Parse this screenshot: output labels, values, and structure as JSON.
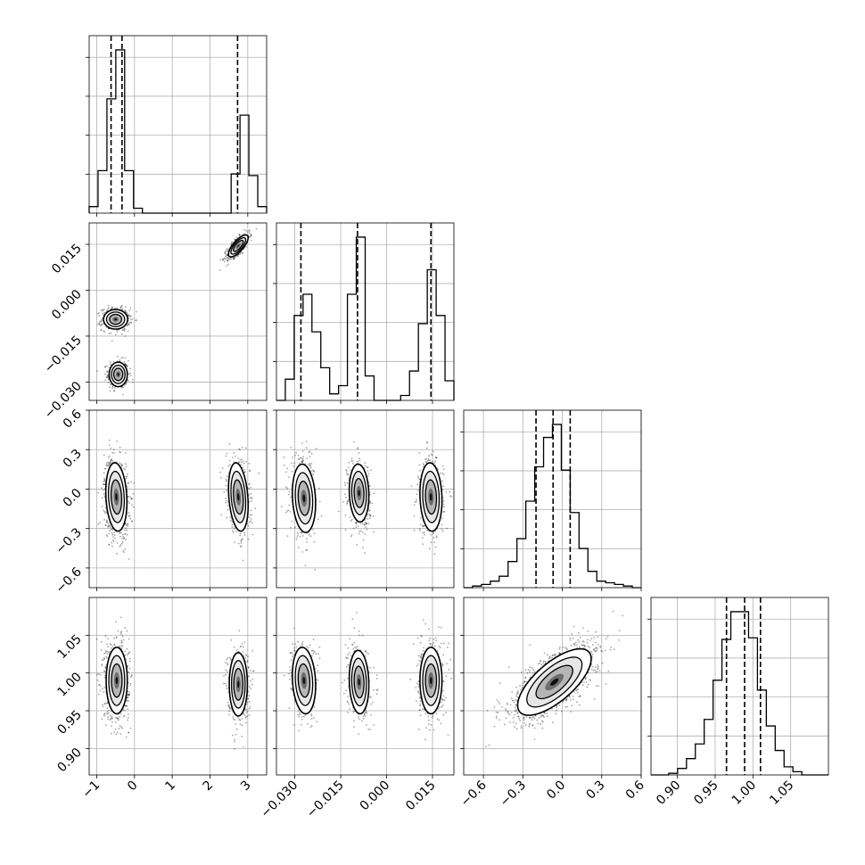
{
  "chart_data": {
    "type": "corner",
    "grid": true,
    "params": [
      {
        "range": [
          -1.2,
          3.5
        ],
        "ticks": [
          -1,
          0,
          1,
          2,
          3
        ],
        "tick_labels": [
          "−1",
          "0",
          "1",
          "2",
          "3"
        ],
        "modes": [
          {
            "center": -0.5,
            "sigma": 0.13,
            "weight": 0.63
          },
          {
            "center": 2.75,
            "sigma": 0.13,
            "weight": 0.37
          }
        ],
        "quantiles": [
          -0.62,
          -0.33,
          2.73
        ],
        "histogram": {
          "bin_edges": [
            -1.2,
            -0.965,
            -0.73,
            -0.495,
            -0.26,
            -0.025,
            0.21,
            0.445,
            0.68,
            0.915,
            1.15,
            1.385,
            1.62,
            1.855,
            2.09,
            2.325,
            2.56,
            2.795,
            3.03,
            3.265,
            3.5
          ],
          "counts": [
            0.04,
            0.26,
            0.7,
            1.0,
            0.26,
            0.03,
            0,
            0,
            0,
            0,
            0,
            0,
            0,
            0,
            0,
            0,
            0.24,
            0.6,
            0.23,
            0.04
          ]
        }
      },
      {
        "range": [
          -0.036,
          0.022
        ],
        "ticks": [
          -0.03,
          -0.015,
          0.0,
          0.015
        ],
        "tick_labels": [
          "−0.030",
          "−0.015",
          "0.000",
          "0.015"
        ],
        "modes": [
          {
            "center": -0.027,
            "sigma": 0.0018,
            "weight": 0.31
          },
          {
            "center": -0.009,
            "sigma": 0.0016,
            "weight": 0.32
          },
          {
            "center": 0.0145,
            "sigma": 0.0018,
            "weight": 0.37
          }
        ],
        "quantiles": [
          -0.028,
          -0.0095,
          0.0145
        ],
        "histogram": {
          "bin_edges": [
            -0.036,
            -0.0331,
            -0.0302,
            -0.0273,
            -0.0244,
            -0.0215,
            -0.0186,
            -0.0157,
            -0.0128,
            -0.0099,
            -0.007,
            -0.0041,
            -0.0012,
            0.0017,
            0.0046,
            0.0075,
            0.0104,
            0.0133,
            0.0162,
            0.0191,
            0.022
          ],
          "counts": [
            0,
            0.13,
            0.52,
            0.65,
            0.42,
            0.2,
            0.04,
            0.09,
            0.65,
            1.0,
            0.15,
            0,
            0,
            0,
            0.03,
            0.18,
            0.47,
            0.8,
            0.52,
            0.12
          ]
        }
      },
      {
        "range": [
          -0.75,
          0.6
        ],
        "ticks": [
          -0.6,
          -0.3,
          0.0,
          0.3,
          0.6
        ],
        "tick_labels": [
          "−0.6",
          "−0.3",
          "0.0",
          "0.3",
          "0.6"
        ],
        "modes": [
          {
            "center": -0.06,
            "sigma": 0.13,
            "weight": 1.0
          }
        ],
        "quantiles": [
          -0.2,
          -0.07,
          0.06
        ],
        "histogram": {
          "bin_edges": [
            -0.75,
            -0.6825,
            -0.615,
            -0.5475,
            -0.48,
            -0.4125,
            -0.345,
            -0.2775,
            -0.21,
            -0.1425,
            -0.075,
            -0.0075,
            0.06,
            0.1275,
            0.195,
            0.2625,
            0.33,
            0.3975,
            0.465,
            0.5325,
            0.6
          ],
          "counts": [
            0,
            0.01,
            0.02,
            0.04,
            0.07,
            0.16,
            0.3,
            0.53,
            0.74,
            0.92,
            1.0,
            0.72,
            0.46,
            0.24,
            0.1,
            0.04,
            0.03,
            0.02,
            0.01,
            0
          ]
        }
      },
      {
        "range": [
          0.865,
          1.1
        ],
        "ticks": [
          0.9,
          0.95,
          1.0,
          1.05
        ],
        "tick_labels": [
          "0.90",
          "0.95",
          "1.00",
          "1.05"
        ],
        "modes": [
          {
            "center": 0.988,
            "sigma": 0.022,
            "weight": 1.0
          }
        ],
        "quantiles": [
          0.965,
          0.989,
          1.01
        ],
        "histogram": {
          "bin_edges": [
            0.865,
            0.87675,
            0.8885,
            0.90025,
            0.912,
            0.92375,
            0.9355,
            0.94725,
            0.959,
            0.97075,
            0.9825,
            0.99425,
            1.006,
            1.01775,
            1.0295,
            1.04125,
            1.053,
            1.06475,
            1.0765,
            1.08825,
            1.1
          ],
          "counts": [
            0,
            0,
            0.01,
            0.04,
            0.1,
            0.19,
            0.34,
            0.58,
            0.83,
            1.0,
            1.0,
            0.84,
            0.52,
            0.3,
            0.15,
            0.05,
            0.02,
            0,
            0,
            0
          ]
        }
      }
    ],
    "joint_pairs": [
      {
        "row": 1,
        "col": 0,
        "blobs": [
          {
            "x": -0.43,
            "y": -0.0275,
            "sx": 0.12,
            "sy": 0.002,
            "corr": 0.0,
            "weight": 0.31
          },
          {
            "x": -0.5,
            "y": -0.0095,
            "sx": 0.16,
            "sy": 0.0016,
            "corr": 0.0,
            "weight": 0.32
          },
          {
            "x": 2.75,
            "y": 0.0145,
            "sx": 0.13,
            "sy": 0.0018,
            "corr": 0.75,
            "weight": 0.37
          }
        ]
      },
      {
        "row": 2,
        "col": 0,
        "blobs": [
          {
            "x": -0.48,
            "y": -0.06,
            "sx": 0.14,
            "sy": 0.13,
            "corr": -0.15,
            "weight": 0.63
          },
          {
            "x": 2.75,
            "y": -0.06,
            "sx": 0.13,
            "sy": 0.13,
            "corr": -0.25,
            "weight": 0.37
          }
        ]
      },
      {
        "row": 2,
        "col": 1,
        "blobs": [
          {
            "x": -0.027,
            "y": -0.07,
            "sx": 0.0019,
            "sy": 0.13,
            "corr": -0.15,
            "weight": 0.31
          },
          {
            "x": -0.009,
            "y": -0.03,
            "sx": 0.0016,
            "sy": 0.11,
            "corr": -0.1,
            "weight": 0.32
          },
          {
            "x": 0.0145,
            "y": -0.06,
            "sx": 0.0018,
            "sy": 0.13,
            "corr": -0.1,
            "weight": 0.37
          }
        ]
      },
      {
        "row": 3,
        "col": 0,
        "blobs": [
          {
            "x": -0.47,
            "y": 0.99,
            "sx": 0.14,
            "sy": 0.022,
            "corr": 0.0,
            "weight": 0.63
          },
          {
            "x": 2.75,
            "y": 0.985,
            "sx": 0.12,
            "sy": 0.021,
            "corr": 0.0,
            "weight": 0.37
          }
        ]
      },
      {
        "row": 3,
        "col": 1,
        "blobs": [
          {
            "x": -0.027,
            "y": 0.99,
            "sx": 0.0019,
            "sy": 0.022,
            "corr": -0.15,
            "weight": 0.31
          },
          {
            "x": -0.009,
            "y": 0.988,
            "sx": 0.0016,
            "sy": 0.021,
            "corr": -0.1,
            "weight": 0.32
          },
          {
            "x": 0.0145,
            "y": 0.99,
            "sx": 0.0018,
            "sy": 0.022,
            "corr": 0.0,
            "weight": 0.37
          }
        ]
      },
      {
        "row": 3,
        "col": 2,
        "blobs": [
          {
            "x": -0.06,
            "y": 0.988,
            "sx": 0.14,
            "sy": 0.022,
            "corr": 0.7,
            "weight": 1.0
          }
        ]
      }
    ]
  }
}
